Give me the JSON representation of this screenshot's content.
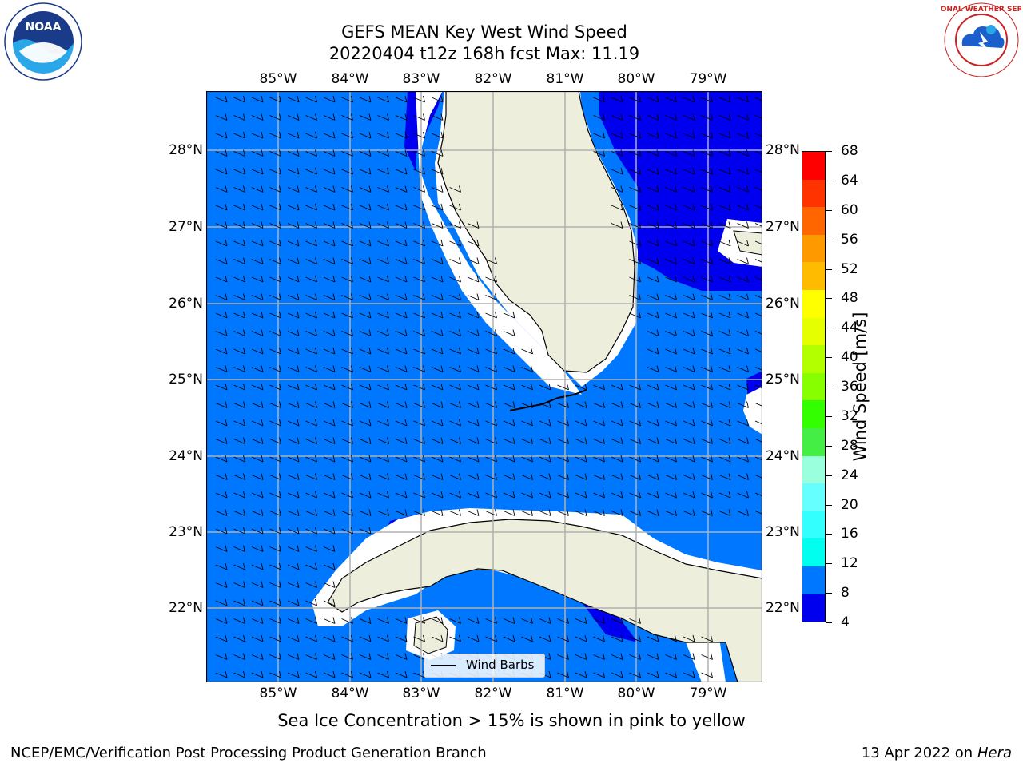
{
  "header": {
    "title_line1": "GEFS MEAN Key West Wind Speed",
    "title_line2": "20220404 t12z 168h fcst   Max: 11.19"
  },
  "logos": {
    "noaa": {
      "icon": "noaa-logo-icon",
      "text": "NOAA"
    },
    "nws": {
      "icon": "nws-logo-icon",
      "text": "NATIONAL WEATHER SERVICE"
    }
  },
  "map": {
    "lon_ticks": [
      "85°W",
      "84°W",
      "83°W",
      "82°W",
      "81°W",
      "80°W",
      "79°W"
    ],
    "lat_ticks": [
      "28°N",
      "27°N",
      "26°N",
      "25°N",
      "24°N",
      "23°N",
      "22°N"
    ],
    "legend_label": "Wind Barbs",
    "colors": {
      "ocean_main": "#0077ff",
      "ocean_low": "#0000ee",
      "land": "#eeeedd",
      "grid": "#b0b0b0"
    }
  },
  "colorbar": {
    "label": "Wind Speed [m/s]",
    "ticks": [
      "68",
      "64",
      "60",
      "56",
      "52",
      "48",
      "44",
      "40",
      "36",
      "32",
      "28",
      "24",
      "20",
      "16",
      "12",
      "8",
      "4"
    ],
    "colors": [
      "#ff0000",
      "#ff3300",
      "#ff6600",
      "#ff9900",
      "#ffbb00",
      "#ffff00",
      "#e6ff00",
      "#b3ff00",
      "#88ff00",
      "#33ff00",
      "#44ee44",
      "#99ffdd",
      "#66ffff",
      "#33ffff",
      "#00ffee",
      "#0077ff",
      "#0000ee"
    ]
  },
  "footer": {
    "sea_ice_note": "Sea Ice Concentration > 15% is shown in pink to yellow",
    "branch": "NCEP/EMC/Verification Post Processing Product Generation Branch",
    "date_prefix": "13 Apr 2022 on ",
    "host": "Hera"
  }
}
